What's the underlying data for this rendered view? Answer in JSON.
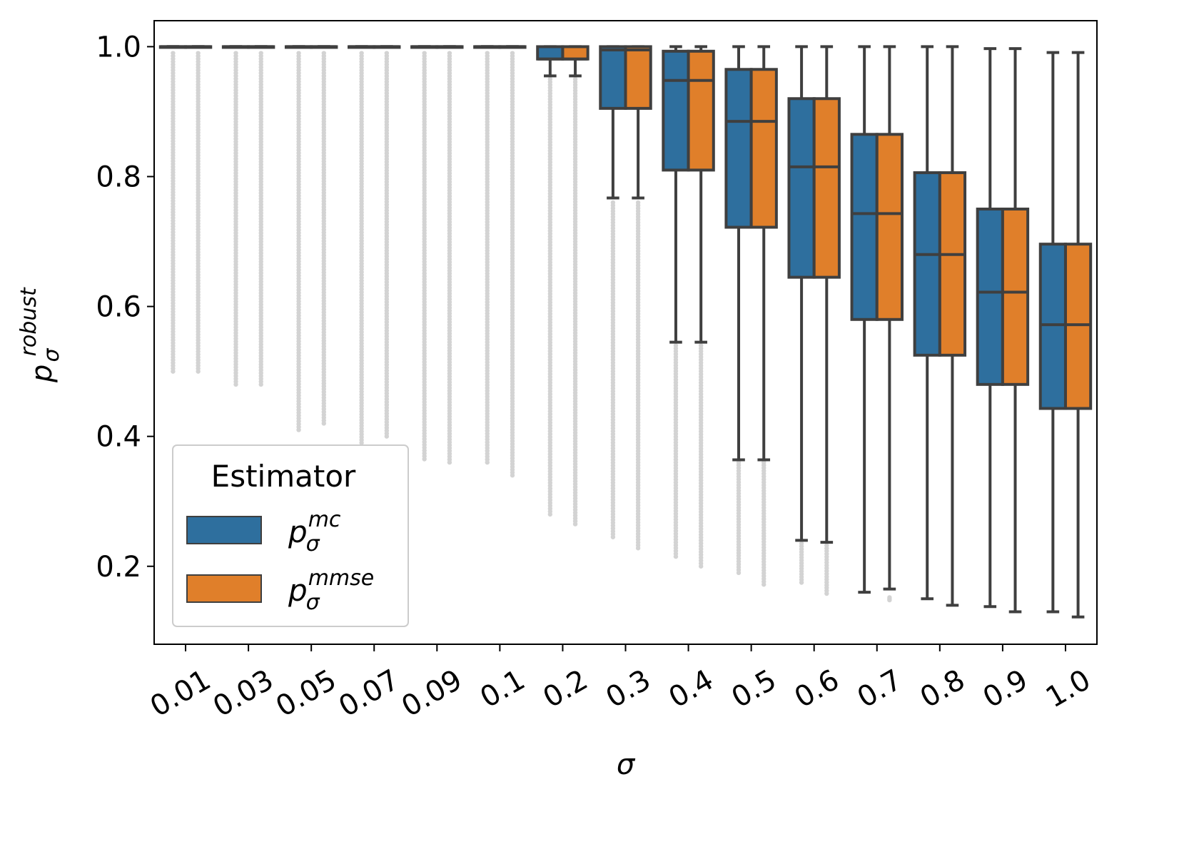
{
  "chart_data": {
    "type": "boxplot",
    "xlabel": "σ",
    "ylabel": {
      "base": "p",
      "sub": "σ",
      "sup": "robust"
    },
    "ylim": [
      0.08,
      1.04
    ],
    "yticks": [
      0.2,
      0.4,
      0.6,
      0.8,
      1.0
    ],
    "ytick_labels": [
      "0.2",
      "0.4",
      "0.6",
      "0.8",
      "1.0"
    ],
    "categories": [
      "0.01",
      "0.03",
      "0.05",
      "0.07",
      "0.09",
      "0.1",
      "0.2",
      "0.3",
      "0.4",
      "0.5",
      "0.6",
      "0.7",
      "0.8",
      "0.9",
      "1.0"
    ],
    "legend": {
      "title": "Estimator",
      "position": "lower-left",
      "entries": [
        {
          "base": "p",
          "sub": "σ",
          "sup": "mc"
        },
        {
          "base": "p",
          "sub": "σ",
          "sup": "mmse"
        }
      ]
    },
    "colors": {
      "mc": "#2e6f9e",
      "mmse": "#e07f2a",
      "edge": "#3f3f3f",
      "outlier": "#d3d3d3"
    },
    "series": [
      {
        "name": "mc",
        "boxes": [
          {
            "q1": 1.0,
            "median": 1.0,
            "q3": 1.0,
            "whislo": 1.0,
            "whishi": 1.0,
            "fliers": {
              "min": 0.5,
              "max": 0.99
            }
          },
          {
            "q1": 1.0,
            "median": 1.0,
            "q3": 1.0,
            "whislo": 1.0,
            "whishi": 1.0,
            "fliers": {
              "min": 0.48,
              "max": 0.99
            }
          },
          {
            "q1": 1.0,
            "median": 1.0,
            "q3": 1.0,
            "whislo": 1.0,
            "whishi": 1.0,
            "fliers": {
              "min": 0.41,
              "max": 0.99
            }
          },
          {
            "q1": 1.0,
            "median": 1.0,
            "q3": 1.0,
            "whislo": 1.0,
            "whishi": 1.0,
            "fliers": {
              "min": 0.39,
              "max": 0.99
            }
          },
          {
            "q1": 1.0,
            "median": 1.0,
            "q3": 1.0,
            "whislo": 1.0,
            "whishi": 1.0,
            "fliers": {
              "min": 0.365,
              "max": 0.99
            }
          },
          {
            "q1": 1.0,
            "median": 1.0,
            "q3": 1.0,
            "whislo": 1.0,
            "whishi": 1.0,
            "fliers": {
              "min": 0.36,
              "max": 0.99
            }
          },
          {
            "q1": 0.981,
            "median": 0.981,
            "q3": 1.0,
            "whislo": 0.955,
            "whishi": 1.0,
            "fliers": {
              "min": 0.28,
              "max": 0.95
            }
          },
          {
            "q1": 0.905,
            "median": 0.995,
            "q3": 1.0,
            "whislo": 0.767,
            "whishi": 1.0,
            "fliers": {
              "min": 0.245,
              "max": 0.76
            }
          },
          {
            "q1": 0.81,
            "median": 0.948,
            "q3": 0.993,
            "whislo": 0.545,
            "whishi": 1.0,
            "fliers": {
              "min": 0.215,
              "max": 0.54
            }
          },
          {
            "q1": 0.722,
            "median": 0.885,
            "q3": 0.965,
            "whislo": 0.364,
            "whishi": 1.0,
            "fliers": {
              "min": 0.19,
              "max": 0.36
            }
          },
          {
            "q1": 0.645,
            "median": 0.815,
            "q3": 0.92,
            "whislo": 0.24,
            "whishi": 1.0,
            "fliers": {
              "min": 0.175,
              "max": 0.235
            }
          },
          {
            "q1": 0.58,
            "median": 0.743,
            "q3": 0.865,
            "whislo": 0.16,
            "whishi": 1.0,
            "fliers": null
          },
          {
            "q1": 0.525,
            "median": 0.68,
            "q3": 0.806,
            "whislo": 0.15,
            "whishi": 1.0,
            "fliers": null
          },
          {
            "q1": 0.48,
            "median": 0.622,
            "q3": 0.75,
            "whislo": 0.138,
            "whishi": 0.997,
            "fliers": null
          },
          {
            "q1": 0.443,
            "median": 0.572,
            "q3": 0.696,
            "whislo": 0.13,
            "whishi": 0.991,
            "fliers": null
          }
        ]
      },
      {
        "name": "mmse",
        "boxes": [
          {
            "q1": 1.0,
            "median": 1.0,
            "q3": 1.0,
            "whislo": 1.0,
            "whishi": 1.0,
            "fliers": {
              "min": 0.5,
              "max": 0.99
            }
          },
          {
            "q1": 1.0,
            "median": 1.0,
            "q3": 1.0,
            "whislo": 1.0,
            "whishi": 1.0,
            "fliers": {
              "min": 0.48,
              "max": 0.99
            }
          },
          {
            "q1": 1.0,
            "median": 1.0,
            "q3": 1.0,
            "whislo": 1.0,
            "whishi": 1.0,
            "fliers": {
              "min": 0.42,
              "max": 0.99
            }
          },
          {
            "q1": 1.0,
            "median": 1.0,
            "q3": 1.0,
            "whislo": 1.0,
            "whishi": 1.0,
            "fliers": {
              "min": 0.4,
              "max": 0.99
            }
          },
          {
            "q1": 1.0,
            "median": 1.0,
            "q3": 1.0,
            "whislo": 1.0,
            "whishi": 1.0,
            "fliers": {
              "min": 0.36,
              "max": 0.99
            }
          },
          {
            "q1": 1.0,
            "median": 1.0,
            "q3": 1.0,
            "whislo": 1.0,
            "whishi": 1.0,
            "fliers": {
              "min": 0.34,
              "max": 0.99
            }
          },
          {
            "q1": 0.981,
            "median": 0.981,
            "q3": 1.0,
            "whislo": 0.955,
            "whishi": 1.0,
            "fliers": {
              "min": 0.265,
              "max": 0.95
            }
          },
          {
            "q1": 0.905,
            "median": 0.995,
            "q3": 1.0,
            "whislo": 0.767,
            "whishi": 1.0,
            "fliers": {
              "min": 0.228,
              "max": 0.76
            }
          },
          {
            "q1": 0.81,
            "median": 0.948,
            "q3": 0.993,
            "whislo": 0.545,
            "whishi": 1.0,
            "fliers": {
              "min": 0.2,
              "max": 0.54
            }
          },
          {
            "q1": 0.722,
            "median": 0.885,
            "q3": 0.965,
            "whislo": 0.364,
            "whishi": 1.0,
            "fliers": {
              "min": 0.172,
              "max": 0.36
            }
          },
          {
            "q1": 0.645,
            "median": 0.815,
            "q3": 0.92,
            "whislo": 0.237,
            "whishi": 1.0,
            "fliers": {
              "min": 0.158,
              "max": 0.232
            }
          },
          {
            "q1": 0.58,
            "median": 0.743,
            "q3": 0.865,
            "whislo": 0.165,
            "whishi": 1.0,
            "fliers": {
              "min": 0.148,
              "max": 0.152
            }
          },
          {
            "q1": 0.525,
            "median": 0.68,
            "q3": 0.806,
            "whislo": 0.14,
            "whishi": 1.0,
            "fliers": null
          },
          {
            "q1": 0.48,
            "median": 0.622,
            "q3": 0.75,
            "whislo": 0.13,
            "whishi": 0.997,
            "fliers": null
          },
          {
            "q1": 0.443,
            "median": 0.572,
            "q3": 0.696,
            "whislo": 0.122,
            "whishi": 0.991,
            "fliers": null
          }
        ]
      }
    ]
  }
}
